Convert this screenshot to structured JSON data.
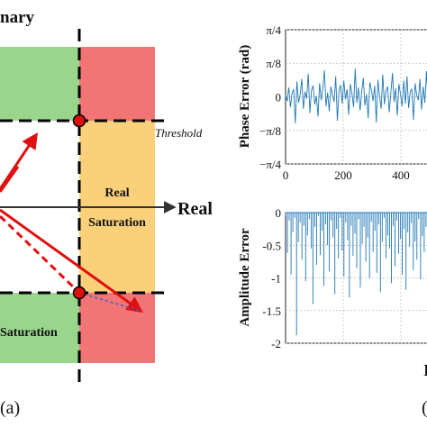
{
  "left_diagram": {
    "axis_imag_label": "nary",
    "axis_real_label": "Real",
    "threshold_label": "Threshold",
    "real_saturation_line1": "Real",
    "real_saturation_line2": "Saturation",
    "bottom_saturation_label": "Saturation",
    "panel_label": "(a)",
    "colors": {
      "green": "#99d58b",
      "red": "#f17575",
      "orange": "#fbd07a",
      "arrow": "#e01010",
      "dot": "#dd1010",
      "dash": "#000000",
      "dotted_blue": "#3a5fc9"
    }
  },
  "cropped_text": {
    "bottom_right_fragment": "(",
    "bottom_axis_fragment": "I"
  },
  "chart_data": [
    {
      "type": "line",
      "title": "",
      "xlabel": "",
      "ylabel": "Phase Error (rad)",
      "x_ticks": [
        "0",
        "200",
        "400"
      ],
      "y_ticks": [
        "π/4",
        "π/8",
        "0",
        "−π/8",
        "−π/4"
      ],
      "xlim": [
        0,
        500
      ],
      "ylim": [
        -0.785,
        0.785
      ],
      "grid": true,
      "color": "#1f77b4",
      "series": [
        {
          "values": [
            0.02,
            -0.05,
            0.11,
            -0.12,
            0.04,
            0.09,
            -0.31,
            0.18,
            -0.07,
            0.03,
            0.21,
            -0.14,
            0.06,
            -0.02,
            0.27,
            -0.19,
            0.08,
            0.13,
            -0.09,
            0.01,
            -0.23,
            0.16,
            -0.04,
            0.1,
            0.31,
            -0.11,
            0.05,
            -0.17,
            0.12,
            0.02,
            -0.06,
            0.24,
            -0.28,
            0.07,
            0.14,
            -0.08,
            0.19,
            -0.03,
            0.09,
            -0.21,
            0.15,
            0.04,
            -0.12,
            0.33,
            -0.07,
            0.11,
            -0.16,
            0.06,
            0.22,
            -0.1,
            0.03,
            -0.25,
            0.17,
            0.08,
            -0.05,
            0.13,
            -0.3,
            0.2,
            0.01,
            -0.14,
            0.26,
            -0.09,
            0.07,
            0.12,
            -0.18,
            0.05,
            0.28,
            -0.06,
            0.1,
            -0.22,
            0.15,
            0.03,
            -0.11,
            0.19,
            -0.08,
            0.24,
            -0.13,
            0.06,
            0.09,
            -0.27,
            0.16,
            0.02,
            -0.04,
            0.21,
            -0.15,
            0.12,
            -0.07,
            0.3,
            -0.1,
            0.05
          ]
        }
      ]
    },
    {
      "type": "line",
      "title": "",
      "xlabel": "",
      "ylabel": "Amplitude Error",
      "x_ticks": [
        "0",
        "200",
        "400"
      ],
      "y_ticks": [
        "0",
        "-0.5",
        "-1",
        "-1.5",
        "-2"
      ],
      "xlim": [
        0,
        500
      ],
      "ylim": [
        -2,
        0
      ],
      "grid": true,
      "color": "#1f77b4",
      "series": [
        {
          "values": [
            -0.05,
            -0.62,
            -0.12,
            -0.95,
            -0.3,
            -0.08,
            -1.88,
            -0.45,
            -0.15,
            -0.72,
            -0.2,
            -1.05,
            -0.35,
            -0.1,
            -0.55,
            -1.4,
            -0.22,
            -0.8,
            -0.05,
            -0.65,
            -0.28,
            -1.12,
            -0.18,
            -0.5,
            -0.9,
            -0.12,
            -0.38,
            -1.25,
            -0.25,
            -0.7,
            -0.08,
            -0.58,
            -0.98,
            -0.15,
            -0.42,
            -1.3,
            -0.2,
            -0.66,
            -0.32,
            -0.85,
            -0.1,
            -1.15,
            -0.48,
            -0.22,
            -0.75,
            -0.38,
            -1.0,
            -0.14,
            -0.6,
            -0.28,
            -0.92,
            -0.18,
            -1.22,
            -0.45,
            -0.08,
            -0.7,
            -0.35,
            -0.55,
            -1.08,
            -0.2,
            -0.82,
            -0.12,
            -0.63,
            -0.4,
            -0.95,
            -0.25,
            -1.18,
            -0.3,
            -0.52,
            -0.16,
            -0.88,
            -0.44,
            -0.72,
            -0.1,
            -1.02,
            -0.36,
            -0.6,
            -0.22,
            -0.78,
            -0.48
          ]
        }
      ]
    }
  ]
}
